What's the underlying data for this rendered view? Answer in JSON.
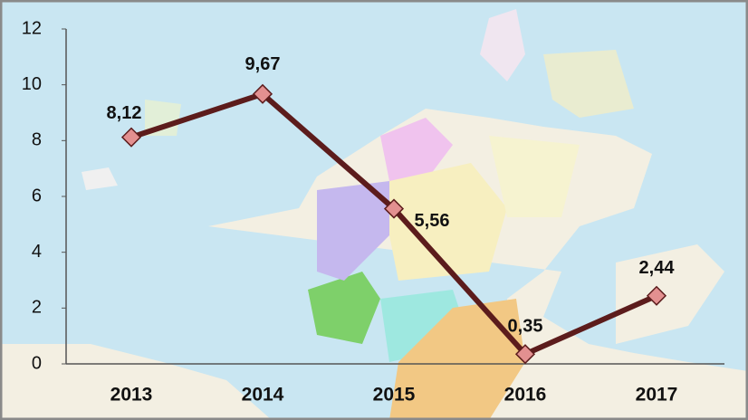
{
  "chart_data": {
    "type": "line",
    "categories": [
      "2013",
      "2014",
      "2015",
      "2016",
      "2017"
    ],
    "series": [
      {
        "color": "#5c1c1c",
        "marker_color": "#e39090",
        "values": [
          8.12,
          9.67,
          5.56,
          0.35,
          2.44
        ],
        "value_labels": [
          "8,12",
          "9,67",
          "5,56",
          "0,35",
          "2,44"
        ]
      }
    ],
    "ylim": [
      0,
      12
    ],
    "yticks": [
      0,
      2,
      4,
      6,
      8,
      10,
      12
    ]
  }
}
